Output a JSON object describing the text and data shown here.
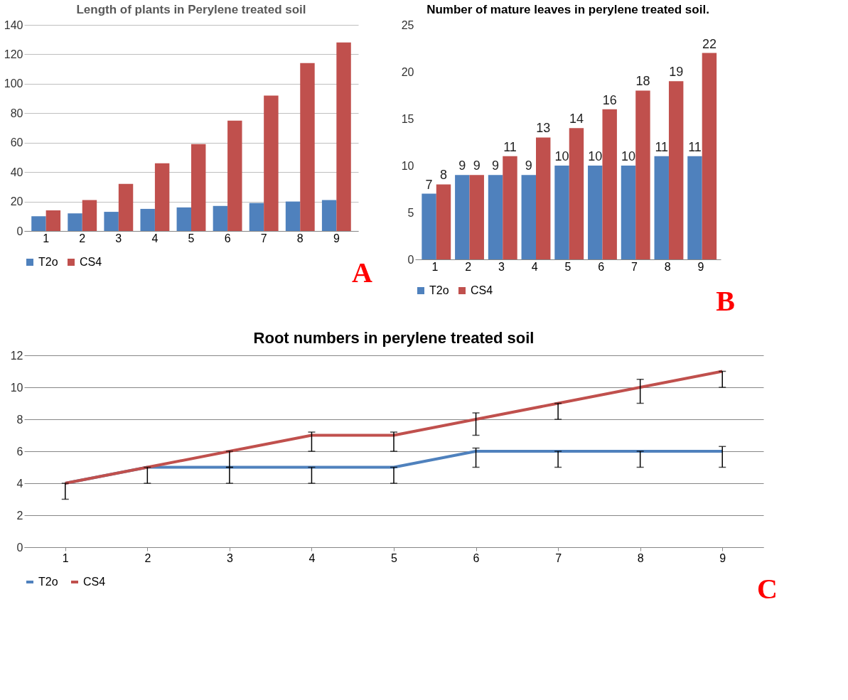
{
  "chart_data": [
    {
      "type": "bar",
      "title": "Length of plants in Perylene treated soil",
      "categories": [
        "1",
        "2",
        "3",
        "4",
        "5",
        "6",
        "7",
        "8",
        "9"
      ],
      "series": [
        {
          "name": "T2o",
          "color": "#4f81bd",
          "values": [
            10,
            12,
            13,
            15,
            16,
            17,
            19,
            20,
            21
          ]
        },
        {
          "name": "CS4",
          "color": "#c0504d",
          "values": [
            14,
            21,
            32,
            46,
            59,
            75,
            92,
            114,
            128
          ]
        }
      ],
      "ylim": [
        0,
        140
      ],
      "yticks": [
        0,
        20,
        40,
        60,
        80,
        100,
        120,
        140
      ],
      "grid": "y",
      "legend": "bottom",
      "annotations": [
        "A"
      ]
    },
    {
      "type": "bar",
      "title": "Number of mature leaves in perylene treated soil.",
      "categories": [
        "1",
        "2",
        "3",
        "4",
        "5",
        "6",
        "7",
        "8",
        "9"
      ],
      "series": [
        {
          "name": "T2o",
          "color": "#4f81bd",
          "values": [
            7,
            9,
            9,
            9,
            10,
            10,
            10,
            11,
            11
          ]
        },
        {
          "name": "CS4",
          "color": "#c0504d",
          "values": [
            8,
            9,
            11,
            13,
            14,
            16,
            18,
            19,
            22
          ]
        }
      ],
      "ylim": [
        0,
        25
      ],
      "yticks": [
        0,
        5,
        10,
        15,
        20,
        25
      ],
      "data_labels": true,
      "legend": "bottom",
      "annotations": [
        "B"
      ]
    },
    {
      "type": "line",
      "title": "Root numbers in perylene treated soil",
      "categories": [
        "1",
        "2",
        "3",
        "4",
        "5",
        "6",
        "7",
        "8",
        "9"
      ],
      "series": [
        {
          "name": "T2o",
          "color": "#4f81bd",
          "values": [
            4,
            5,
            5,
            5,
            5,
            6,
            6,
            6,
            6
          ],
          "errors": [
            [
              3,
              4
            ],
            [
              4,
              5
            ],
            [
              4,
              5
            ],
            [
              4,
              5
            ],
            [
              4,
              5
            ],
            [
              5,
              6.2
            ],
            [
              5,
              6
            ],
            [
              5,
              6
            ],
            [
              5,
              6.3
            ]
          ]
        },
        {
          "name": "CS4",
          "color": "#c0504d",
          "values": [
            4,
            5,
            6,
            7,
            7,
            8,
            9,
            10,
            11
          ],
          "errors": [
            null,
            null,
            [
              5,
              6
            ],
            [
              6,
              7.2
            ],
            [
              6,
              7.2
            ],
            [
              7,
              8.4
            ],
            [
              8,
              9
            ],
            [
              9,
              10.5
            ],
            [
              10,
              11
            ]
          ]
        }
      ],
      "ylim": [
        0,
        12
      ],
      "yticks": [
        0,
        2,
        4,
        6,
        8,
        10,
        12
      ],
      "grid": "y",
      "legend": "bottom",
      "marker": "none",
      "annotations": [
        "C"
      ]
    }
  ]
}
